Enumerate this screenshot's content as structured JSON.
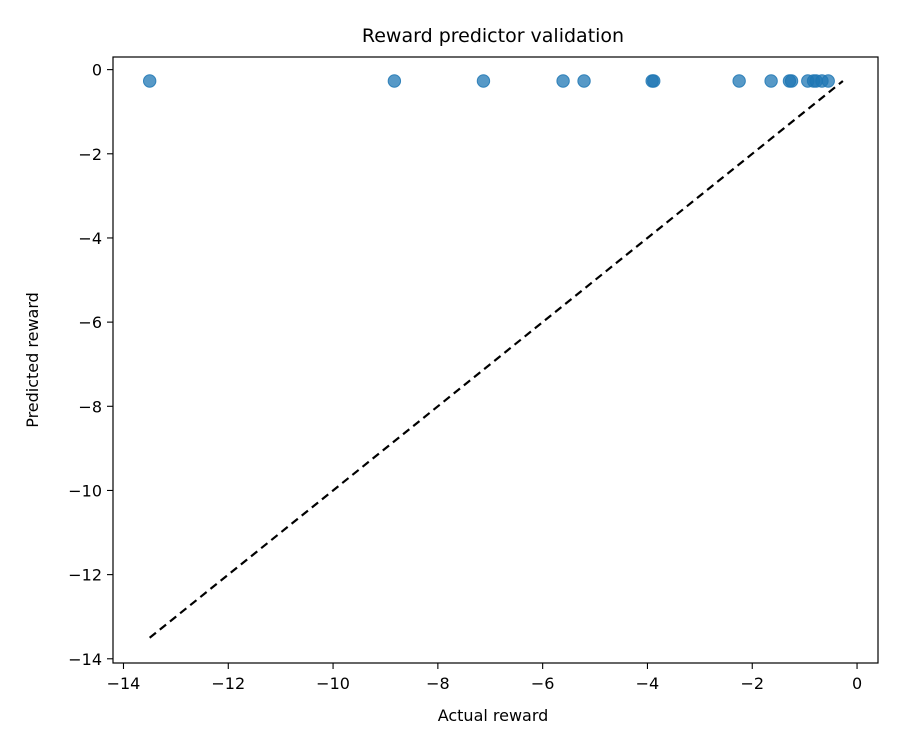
{
  "chart_data": {
    "type": "scatter",
    "title": "Reward predictor validation",
    "xlabel": "Actual reward",
    "ylabel": "Predicted reward",
    "xlim": [
      -14.2,
      0.4
    ],
    "ylim": [
      -14.1,
      0.3
    ],
    "x_ticks": [
      -14,
      -12,
      -10,
      -8,
      -6,
      -4,
      -2,
      0
    ],
    "y_ticks": [
      -14,
      -12,
      -10,
      -8,
      -6,
      -4,
      -2,
      0
    ],
    "grid": false,
    "point_color": "#1f77b4",
    "reference_line": {
      "style": "dashed",
      "color": "#000000",
      "x": [
        -13.5,
        -0.27
      ],
      "y": [
        -13.5,
        -0.27
      ]
    },
    "points": [
      {
        "x": -13.5,
        "y": -0.27
      },
      {
        "x": -8.83,
        "y": -0.27
      },
      {
        "x": -7.13,
        "y": -0.27
      },
      {
        "x": -5.61,
        "y": -0.27
      },
      {
        "x": -5.21,
        "y": -0.27
      },
      {
        "x": -3.91,
        "y": -0.27
      },
      {
        "x": -3.88,
        "y": -0.27
      },
      {
        "x": -2.25,
        "y": -0.27
      },
      {
        "x": -1.64,
        "y": -0.27
      },
      {
        "x": -1.29,
        "y": -0.27
      },
      {
        "x": -1.25,
        "y": -0.27
      },
      {
        "x": -0.94,
        "y": -0.27
      },
      {
        "x": -0.83,
        "y": -0.27
      },
      {
        "x": -0.78,
        "y": -0.27
      },
      {
        "x": -0.67,
        "y": -0.27
      },
      {
        "x": -0.55,
        "y": -0.27
      }
    ]
  }
}
